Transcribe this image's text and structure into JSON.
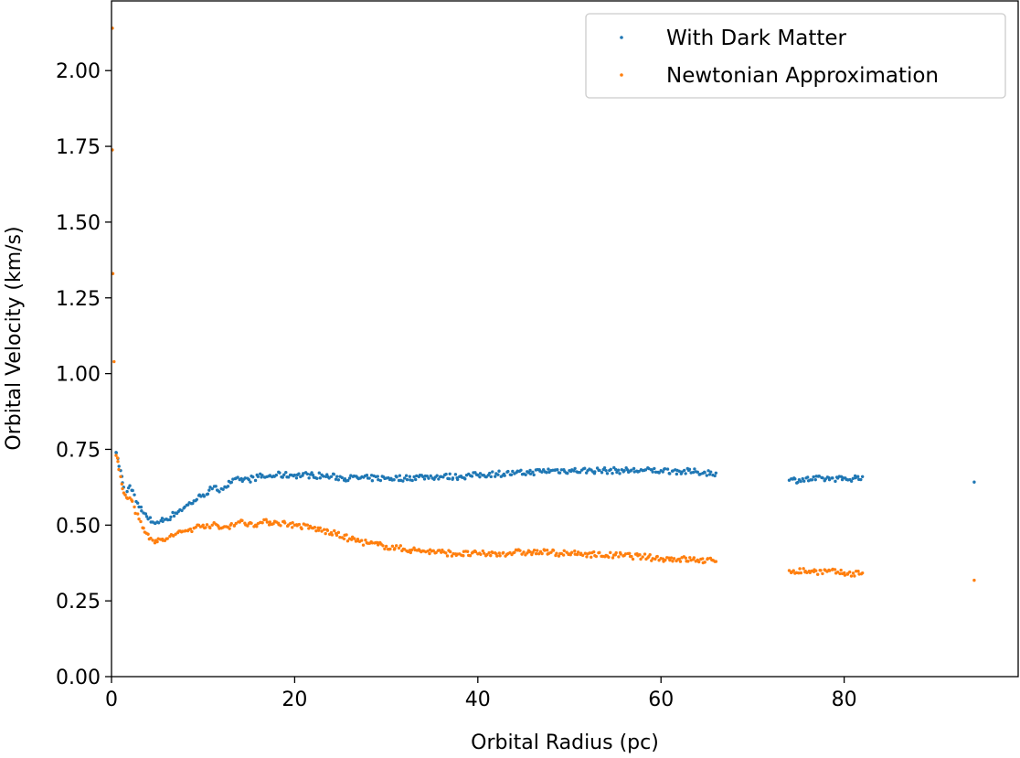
{
  "chart_data": {
    "type": "scatter",
    "title": "",
    "xlabel": "Orbital Radius (pc)",
    "ylabel": "Orbital Velocity (km/s)",
    "xlim": [
      0,
      99
    ],
    "ylim": [
      0,
      2.23
    ],
    "xticks": [
      0,
      20,
      40,
      60,
      80
    ],
    "xtick_labels": [
      "0",
      "20",
      "40",
      "60",
      "80"
    ],
    "yticks": [
      0,
      0.25,
      0.5,
      0.75,
      1.0,
      1.25,
      1.5,
      1.75,
      2.0
    ],
    "ytick_labels": [
      "0.00",
      "0.25",
      "0.50",
      "0.75",
      "1.00",
      "1.25",
      "1.50",
      "1.75",
      "2.00"
    ],
    "grid": false,
    "legend_position": "top-right",
    "series": [
      {
        "name": "With Dark Matter",
        "color": "#1f77b4",
        "points": [
          [
            0.5,
            0.74
          ],
          [
            0.7,
            0.72
          ],
          [
            1.0,
            0.68
          ],
          [
            1.2,
            0.64
          ],
          [
            1.5,
            0.6
          ],
          [
            2.0,
            0.63
          ],
          [
            2.5,
            0.6
          ],
          [
            3.0,
            0.56
          ],
          [
            3.5,
            0.54
          ],
          [
            4.0,
            0.52
          ],
          [
            4.5,
            0.51
          ],
          [
            5.0,
            0.51
          ],
          [
            6.0,
            0.52
          ],
          [
            7.0,
            0.54
          ],
          [
            8.0,
            0.56
          ],
          [
            9.0,
            0.58
          ],
          [
            10.0,
            0.6
          ],
          [
            11.0,
            0.62
          ],
          [
            12.0,
            0.62
          ],
          [
            13.0,
            0.64
          ],
          [
            14.0,
            0.65
          ],
          [
            15.0,
            0.65
          ],
          [
            16.0,
            0.66
          ],
          [
            17.0,
            0.66
          ],
          [
            18.0,
            0.665
          ],
          [
            20.0,
            0.665
          ],
          [
            22.0,
            0.665
          ],
          [
            24.0,
            0.66
          ],
          [
            26.0,
            0.655
          ],
          [
            28.0,
            0.655
          ],
          [
            30.0,
            0.655
          ],
          [
            32.0,
            0.655
          ],
          [
            34.0,
            0.66
          ],
          [
            36.0,
            0.66
          ],
          [
            38.0,
            0.66
          ],
          [
            40.0,
            0.665
          ],
          [
            42.0,
            0.67
          ],
          [
            44.0,
            0.67
          ],
          [
            46.0,
            0.675
          ],
          [
            48.0,
            0.68
          ],
          [
            50.0,
            0.68
          ],
          [
            52.0,
            0.68
          ],
          [
            54.0,
            0.68
          ],
          [
            56.0,
            0.68
          ],
          [
            58.0,
            0.68
          ],
          [
            60.0,
            0.68
          ],
          [
            62.0,
            0.678
          ],
          [
            64.0,
            0.675
          ],
          [
            66.0,
            0.672
          ],
          [
            74.0,
            0.648
          ],
          [
            79.3,
            0.655
          ],
          [
            79.8,
            0.65
          ],
          [
            82.0,
            0.66
          ],
          [
            94.2,
            0.642
          ]
        ]
      },
      {
        "name": "Newtonian Approximation",
        "color": "#ff7f0e",
        "points": [
          [
            0.1,
            2.14
          ],
          [
            0.15,
            1.33
          ],
          [
            0.5,
            0.73
          ],
          [
            0.7,
            0.71
          ],
          [
            1.0,
            0.66
          ],
          [
            1.2,
            0.62
          ],
          [
            1.5,
            0.6
          ],
          [
            2.0,
            0.59
          ],
          [
            2.5,
            0.56
          ],
          [
            3.0,
            0.52
          ],
          [
            3.5,
            0.49
          ],
          [
            4.0,
            0.47
          ],
          [
            4.5,
            0.45
          ],
          [
            5.0,
            0.445
          ],
          [
            6.0,
            0.455
          ],
          [
            7.0,
            0.47
          ],
          [
            8.0,
            0.48
          ],
          [
            9.0,
            0.49
          ],
          [
            10.0,
            0.5
          ],
          [
            11.0,
            0.5
          ],
          [
            12.0,
            0.49
          ],
          [
            13.0,
            0.5
          ],
          [
            14.0,
            0.51
          ],
          [
            15.0,
            0.505
          ],
          [
            16.0,
            0.505
          ],
          [
            17.0,
            0.51
          ],
          [
            18.0,
            0.51
          ],
          [
            20.0,
            0.5
          ],
          [
            22.0,
            0.49
          ],
          [
            24.0,
            0.475
          ],
          [
            26.0,
            0.455
          ],
          [
            28.0,
            0.44
          ],
          [
            30.0,
            0.43
          ],
          [
            32.0,
            0.42
          ],
          [
            34.0,
            0.415
          ],
          [
            36.0,
            0.41
          ],
          [
            38.0,
            0.405
          ],
          [
            40.0,
            0.405
          ],
          [
            42.0,
            0.405
          ],
          [
            44.0,
            0.41
          ],
          [
            46.0,
            0.41
          ],
          [
            48.0,
            0.41
          ],
          [
            50.0,
            0.405
          ],
          [
            52.0,
            0.405
          ],
          [
            54.0,
            0.4
          ],
          [
            56.0,
            0.4
          ],
          [
            58.0,
            0.395
          ],
          [
            60.0,
            0.39
          ],
          [
            62.0,
            0.388
          ],
          [
            64.0,
            0.385
          ],
          [
            66.0,
            0.38
          ],
          [
            74.0,
            0.35
          ],
          [
            79.3,
            0.345
          ],
          [
            79.8,
            0.34
          ],
          [
            82.0,
            0.342
          ],
          [
            94.2,
            0.318
          ]
        ]
      }
    ]
  }
}
